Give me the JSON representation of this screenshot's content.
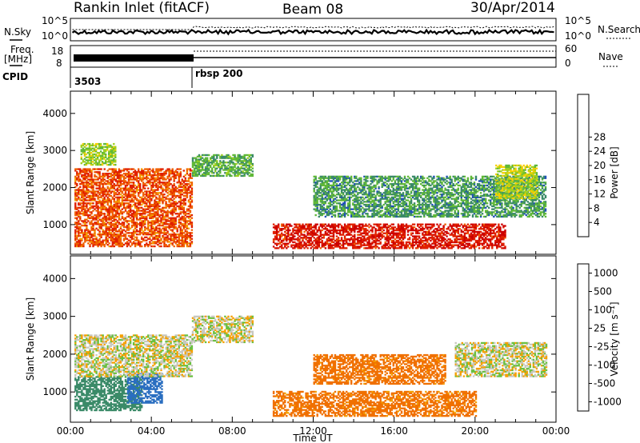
{
  "header": {
    "station": "Rankin Inlet (fitACF)",
    "beam": "Beam 08",
    "date": "30/Apr/2014"
  },
  "params": {
    "nsky_label": "N.Sky",
    "nsearch_label": "N.Search",
    "freq_label_line1": "Freq.",
    "freq_label_line2": "[MHz]",
    "nave_label": "Nave",
    "cpid_label": "CPID",
    "noise_ticks": [
      "10^5",
      "10^0"
    ],
    "freq_ticks": [
      "18",
      "8"
    ],
    "nave_ticks": [
      "60",
      "0"
    ],
    "cpid_segments": [
      {
        "start_h": 0,
        "end_h": 6,
        "label": "3503"
      },
      {
        "start_h": 6,
        "end_h": 24,
        "label": "rbsp 200"
      }
    ]
  },
  "chart_data": [
    {
      "type": "heatmap",
      "title": "",
      "xlabel": "",
      "ylabel": "Slant Range [km]",
      "xlim": [
        0,
        24
      ],
      "ylim": [
        200,
        4600
      ],
      "yticks": [
        1000,
        2000,
        3000,
        4000
      ],
      "colorbar": {
        "label": "Power [dB]",
        "ticks": [
          "4",
          "8",
          "12",
          "16",
          "20",
          "24",
          "28"
        ],
        "colors": [
          "#0000ee",
          "#2050b8",
          "#3a8a68",
          "#60b838",
          "#a0d020",
          "#f5d000",
          "#f5a000",
          "#f06000",
          "#e02000",
          "#cc0000"
        ]
      },
      "regions": [
        {
          "x": [
            0.2,
            6.0
          ],
          "y": [
            400,
            2500
          ],
          "value": 24
        },
        {
          "x": [
            0.5,
            2.2
          ],
          "y": [
            2600,
            3200
          ],
          "value": 14
        },
        {
          "x": [
            6.0,
            9.0
          ],
          "y": [
            2300,
            2900
          ],
          "value": 11
        },
        {
          "x": [
            10.0,
            21.5
          ],
          "y": [
            350,
            1000
          ],
          "value": 27
        },
        {
          "x": [
            12.0,
            23.5
          ],
          "y": [
            1200,
            2300
          ],
          "value": 10
        },
        {
          "x": [
            21.0,
            23.0
          ],
          "y": [
            1700,
            2600
          ],
          "value": 15
        }
      ]
    },
    {
      "type": "heatmap",
      "title": "",
      "xlabel": "Time UT",
      "ylabel": "Slant Range [km]",
      "xlim": [
        0,
        24
      ],
      "ylim": [
        200,
        4600
      ],
      "yticks": [
        1000,
        2000,
        3000,
        4000
      ],
      "xticks": [
        "00:00",
        "04:00",
        "08:00",
        "12:00",
        "16:00",
        "20:00",
        "00:00"
      ],
      "colorbar": {
        "label": "Velocity [m s⁻¹]",
        "ticks": [
          "1000",
          "500",
          "100",
          "25",
          "-25",
          "-100",
          "-500",
          "-1000"
        ],
        "colors": [
          "#1a3fb0",
          "#2a6ec0",
          "#3a8a68",
          "#6ac040",
          "#c8c8c0",
          "#f5a000",
          "#f07000",
          "#e03000",
          "#cc0000"
        ]
      },
      "regions": [
        {
          "x": [
            0.2,
            3.5
          ],
          "y": [
            500,
            1400
          ],
          "value": 200
        },
        {
          "x": [
            2.8,
            4.5
          ],
          "y": [
            700,
            1500
          ],
          "value": 800
        },
        {
          "x": [
            0.2,
            6.0
          ],
          "y": [
            1400,
            2500
          ],
          "value": 0
        },
        {
          "x": [
            6.0,
            9.0
          ],
          "y": [
            2300,
            3000
          ],
          "value": 0
        },
        {
          "x": [
            10.0,
            20.0
          ],
          "y": [
            350,
            1000
          ],
          "value": -150
        },
        {
          "x": [
            12.0,
            18.5
          ],
          "y": [
            1200,
            2000
          ],
          "value": -150
        },
        {
          "x": [
            19.0,
            23.5
          ],
          "y": [
            1400,
            2300
          ],
          "value": 0
        }
      ]
    }
  ]
}
